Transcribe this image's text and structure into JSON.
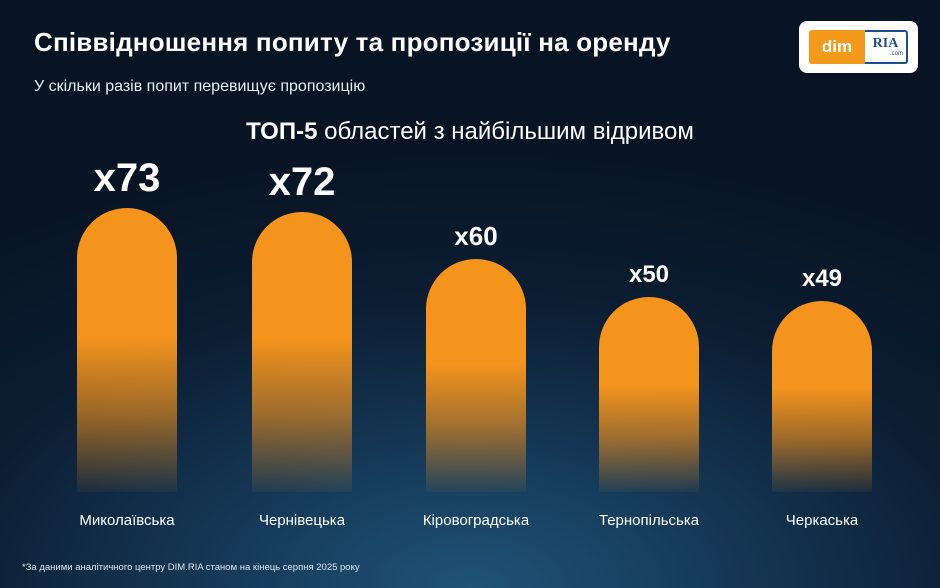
{
  "header": {
    "title": "Співвідношення попиту та пропозиції на оренду",
    "subtitle": "У скільки разів попит перевищує пропозицію"
  },
  "logo": {
    "dim": "dim",
    "ria": "RIA",
    "com": ".com"
  },
  "colors": {
    "bar": "#f5941d",
    "background": "#0c1e33",
    "text": "#ffffff"
  },
  "chart_data": {
    "type": "bar",
    "title_bold": "ТОП-5",
    "title_rest": " областей з найбільшим відривом",
    "categories": [
      "Миколаївська",
      "Чернівецька",
      "Кіровоградська",
      "Тернопільська",
      "Черкаська"
    ],
    "values": [
      73,
      72,
      60,
      50,
      49
    ],
    "value_labels": [
      "x73",
      "x72",
      "x60",
      "x50",
      "x49"
    ],
    "xlabel": "",
    "ylabel": "",
    "grid": false,
    "legend": "none"
  },
  "footnote": "*За даними аналітичного центру DIM.RIA станом на кінець серпня 2025 року"
}
